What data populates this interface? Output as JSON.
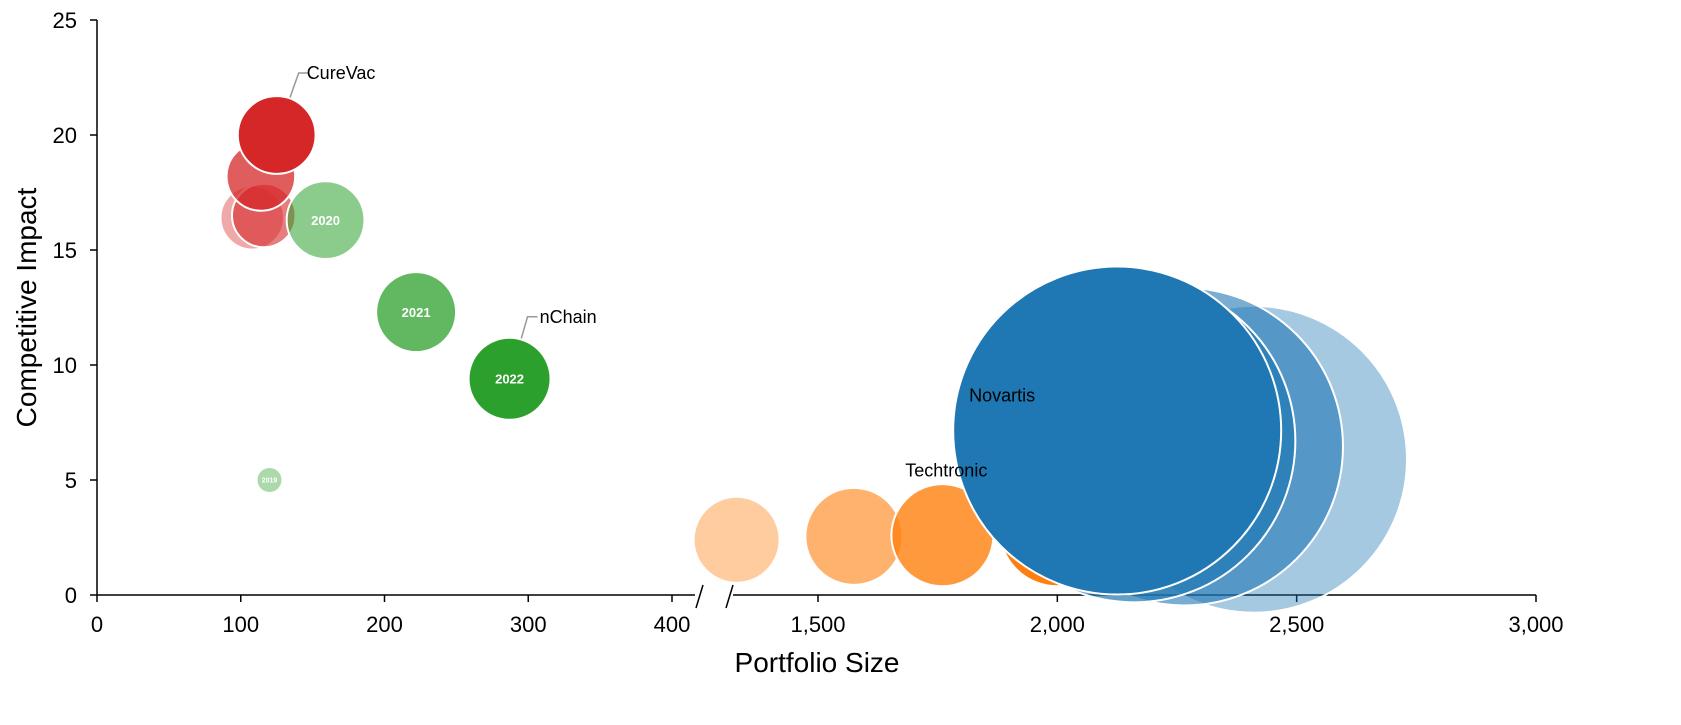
{
  "chart_data": {
    "type": "scatter",
    "subtype": "bubble",
    "xlabel": "Portfolio Size",
    "ylabel": "Competitive Impact",
    "broken_x_axis": true,
    "x_segments": [
      {
        "range": [
          0,
          400
        ],
        "ticks": [
          0,
          100,
          200,
          300,
          400
        ],
        "tick_labels": [
          "0",
          "100",
          "200",
          "300",
          "400"
        ]
      },
      {
        "range": [
          1310,
          3000
        ],
        "ticks": [
          1500,
          2000,
          2500,
          3000
        ],
        "tick_labels": [
          "1,500",
          "2,000",
          "2,500",
          "3,000"
        ]
      }
    ],
    "ylim": [
      0,
      25
    ],
    "yticks": [
      0,
      5,
      10,
      15,
      20,
      25
    ],
    "ytick_labels": [
      "0",
      "5",
      "10",
      "15",
      "20",
      "25"
    ],
    "grid": false,
    "legend": "none",
    "series": [
      {
        "name": "CureVac",
        "color": "#d62728",
        "points": [
          {
            "x": 108,
            "y": 16.4,
            "size": 60,
            "opacity": 0.4
          },
          {
            "x": 116,
            "y": 16.5,
            "size": 60,
            "opacity": 0.6
          },
          {
            "x": 114,
            "y": 18.2,
            "size": 70,
            "opacity": 0.75
          },
          {
            "x": 125,
            "y": 20.0,
            "size": 90,
            "opacity": 1.0
          }
        ]
      },
      {
        "name": "nChain",
        "color": "#2ca02c",
        "points": [
          {
            "x": 120,
            "y": 5.0,
            "size": 10,
            "opacity": 0.4,
            "label": "2019"
          },
          {
            "x": 159,
            "y": 16.3,
            "size": 90,
            "opacity": 0.55,
            "label": "2020"
          },
          {
            "x": 222,
            "y": 12.3,
            "size": 95,
            "opacity": 0.75,
            "label": "2021"
          },
          {
            "x": 287,
            "y": 9.4,
            "size": 100,
            "opacity": 1.0,
            "label": "2022"
          }
        ]
      },
      {
        "name": "Techtronic",
        "color": "#ff7f0e",
        "points": [
          {
            "x": 1330,
            "y": 2.4,
            "size": 110,
            "opacity": 0.4
          },
          {
            "x": 1575,
            "y": 2.55,
            "size": 140,
            "opacity": 0.6
          },
          {
            "x": 1760,
            "y": 2.6,
            "size": 155,
            "opacity": 0.8
          },
          {
            "x": 2000,
            "y": 2.9,
            "size": 200,
            "opacity": 1.0
          }
        ]
      },
      {
        "name": "Novartis",
        "color": "#1f77b4",
        "points": [
          {
            "x": 2410,
            "y": 5.9,
            "size": 1400,
            "opacity": 0.4
          },
          {
            "x": 2265,
            "y": 6.45,
            "size": 1500,
            "opacity": 0.6
          },
          {
            "x": 2160,
            "y": 6.7,
            "size": 1550,
            "opacity": 0.7
          },
          {
            "x": 2125,
            "y": 7.15,
            "size": 1600,
            "opacity": 1.0
          }
        ]
      }
    ],
    "annotations": [
      {
        "text": "CureVac",
        "x": 125,
        "y": 20.0
      },
      {
        "text": "nChain",
        "x": 287,
        "y": 9.4
      },
      {
        "text": "Novartis",
        "x": 2125,
        "y": 7.15
      },
      {
        "text": "Techtronic",
        "x": 2000,
        "y": 2.9
      }
    ]
  }
}
